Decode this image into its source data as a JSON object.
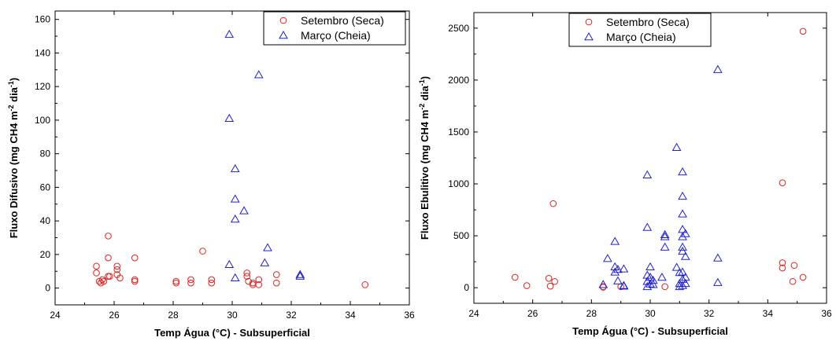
{
  "chart_data": [
    {
      "type": "scatter",
      "xlabel": "Temp Água (°C) - Subsuperficial",
      "ylabel": "Fluxo Difusivo (mg CH4  m-2 dia-1)",
      "xlim": [
        24,
        36
      ],
      "ylim": [
        -10,
        165
      ],
      "xticks": [
        24,
        26,
        28,
        30,
        32,
        34,
        36
      ],
      "yticks": [
        0,
        20,
        40,
        60,
        80,
        100,
        120,
        140,
        160
      ],
      "legend_position": "top-right",
      "grid": false,
      "series": [
        {
          "name": "Setembro (Seca)",
          "marker": "circle",
          "color": "#e02020",
          "points": [
            [
              25.4,
              13
            ],
            [
              25.4,
              9
            ],
            [
              25.5,
              4
            ],
            [
              25.55,
              3
            ],
            [
              25.6,
              5
            ],
            [
              25.65,
              4
            ],
            [
              25.8,
              31
            ],
            [
              25.8,
              18
            ],
            [
              25.8,
              7
            ],
            [
              25.85,
              7
            ],
            [
              26.1,
              13
            ],
            [
              26.1,
              11
            ],
            [
              26.1,
              8
            ],
            [
              26.2,
              6
            ],
            [
              26.7,
              18
            ],
            [
              26.7,
              5
            ],
            [
              26.7,
              4
            ],
            [
              28.1,
              4
            ],
            [
              28.1,
              3
            ],
            [
              28.6,
              5
            ],
            [
              28.6,
              3
            ],
            [
              29.0,
              22
            ],
            [
              29.3,
              5
            ],
            [
              29.3,
              3
            ],
            [
              30.5,
              9
            ],
            [
              30.5,
              7
            ],
            [
              30.55,
              4
            ],
            [
              30.7,
              3
            ],
            [
              30.7,
              2
            ],
            [
              30.9,
              5
            ],
            [
              30.9,
              2
            ],
            [
              31.5,
              8
            ],
            [
              31.5,
              3
            ],
            [
              34.5,
              2
            ]
          ]
        },
        {
          "name": "Março (Cheia)",
          "marker": "triangle",
          "color": "#2020d0",
          "points": [
            [
              29.9,
              151
            ],
            [
              29.9,
              101
            ],
            [
              29.9,
              14
            ],
            [
              30.1,
              71
            ],
            [
              30.1,
              53
            ],
            [
              30.1,
              41
            ],
            [
              30.1,
              6
            ],
            [
              30.4,
              46
            ],
            [
              30.9,
              127
            ],
            [
              31.1,
              15
            ],
            [
              31.2,
              24
            ],
            [
              32.3,
              8
            ],
            [
              32.3,
              7
            ]
          ]
        }
      ]
    },
    {
      "type": "scatter",
      "xlabel": "Temp Água (°C) - Subsuperficial",
      "ylabel": "Fluxo Ebulitivo (mg CH4  m-2 dia-1)",
      "xlim": [
        24,
        36
      ],
      "ylim": [
        -150,
        2650
      ],
      "xticks": [
        24,
        26,
        28,
        30,
        32,
        34,
        36
      ],
      "yticks": [
        0,
        500,
        1000,
        1500,
        2000,
        2500
      ],
      "legend_position": "top-center",
      "grid": false,
      "series": [
        {
          "name": "Setembro (Seca)",
          "marker": "circle",
          "color": "#e02020",
          "points": [
            [
              25.4,
              100
            ],
            [
              25.8,
              20
            ],
            [
              26.55,
              90
            ],
            [
              26.6,
              15
            ],
            [
              26.7,
              810
            ],
            [
              26.75,
              60
            ],
            [
              28.4,
              10
            ],
            [
              28.4,
              5
            ],
            [
              29.0,
              10
            ],
            [
              30.5,
              10
            ],
            [
              34.5,
              1010
            ],
            [
              34.5,
              240
            ],
            [
              34.5,
              190
            ],
            [
              34.85,
              60
            ],
            [
              34.9,
              215
            ],
            [
              35.2,
              2470
            ],
            [
              35.2,
              100
            ]
          ]
        },
        {
          "name": "Março (Cheia)",
          "marker": "triangle",
          "color": "#2020d0",
          "points": [
            [
              28.4,
              30
            ],
            [
              28.55,
              280
            ],
            [
              28.8,
              445
            ],
            [
              28.8,
              200
            ],
            [
              28.8,
              150
            ],
            [
              28.9,
              175
            ],
            [
              28.9,
              65
            ],
            [
              29.1,
              180
            ],
            [
              29.1,
              20
            ],
            [
              29.1,
              15
            ],
            [
              29.9,
              1085
            ],
            [
              29.9,
              580
            ],
            [
              29.9,
              120
            ],
            [
              29.9,
              60
            ],
            [
              29.9,
              10
            ],
            [
              30.0,
              200
            ],
            [
              30.0,
              100
            ],
            [
              30.0,
              35
            ],
            [
              30.1,
              70
            ],
            [
              30.1,
              30
            ],
            [
              30.4,
              100
            ],
            [
              30.5,
              510
            ],
            [
              30.5,
              490
            ],
            [
              30.5,
              390
            ],
            [
              30.9,
              1350
            ],
            [
              30.9,
              195
            ],
            [
              31.0,
              145
            ],
            [
              31.0,
              40
            ],
            [
              31.0,
              10
            ],
            [
              31.1,
              1115
            ],
            [
              31.1,
              880
            ],
            [
              31.1,
              710
            ],
            [
              31.1,
              560
            ],
            [
              31.1,
              490
            ],
            [
              31.1,
              390
            ],
            [
              31.1,
              350
            ],
            [
              31.1,
              150
            ],
            [
              31.1,
              80
            ],
            [
              31.1,
              20
            ],
            [
              31.2,
              520
            ],
            [
              31.2,
              300
            ],
            [
              31.2,
              100
            ],
            [
              31.2,
              40
            ],
            [
              32.3,
              2100
            ],
            [
              32.3,
              285
            ],
            [
              32.3,
              50
            ]
          ]
        }
      ]
    }
  ]
}
